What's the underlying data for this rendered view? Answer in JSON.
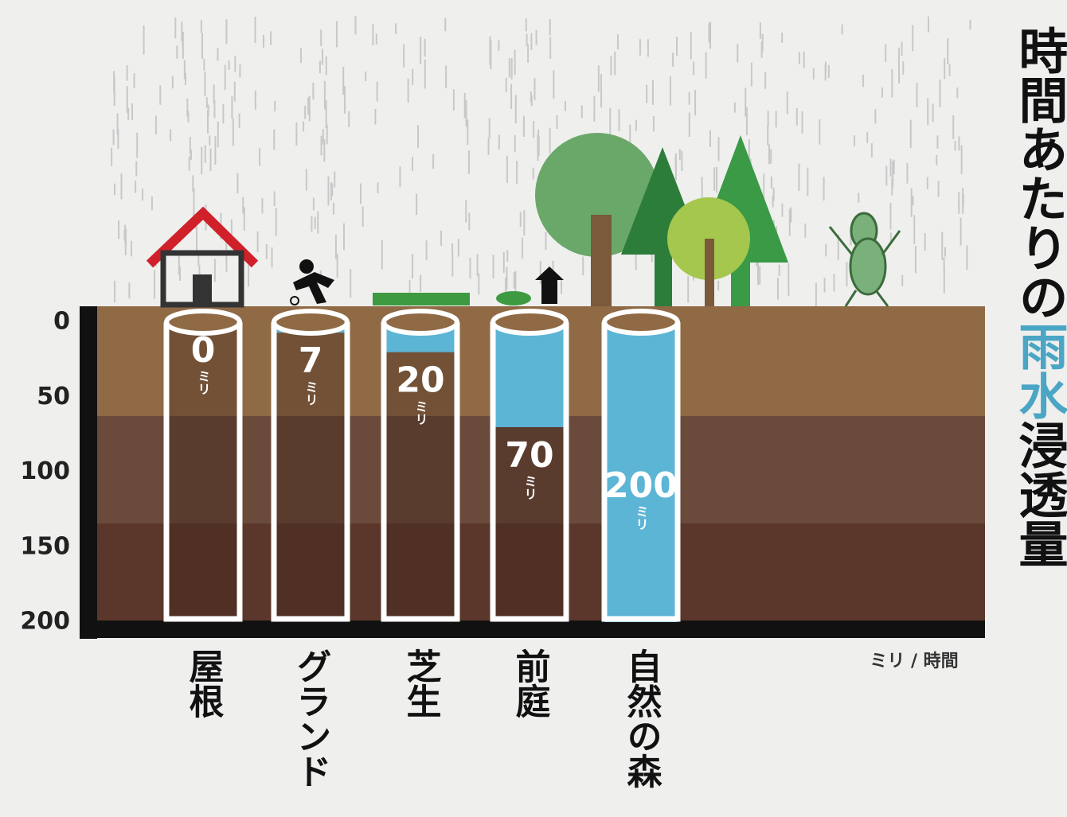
{
  "chart_data": {
    "type": "bar",
    "title": [
      {
        "text": "時間あたりの"
      },
      {
        "text": "雨水",
        "color": "#4aa6c4"
      },
      {
        "text": "浸透量"
      }
    ],
    "categories": [
      "屋根",
      "グランド",
      "芝生",
      "前庭",
      "自然の森"
    ],
    "values": [
      0,
      7,
      20,
      70,
      200
    ],
    "value_unit": "ミリ",
    "unit_label": "ミリ / 時間",
    "color": "#5db5d5",
    "ylim": [
      0,
      200
    ],
    "yticks": [
      0,
      50,
      100,
      150,
      200
    ],
    "y_inverted": true
  }
}
